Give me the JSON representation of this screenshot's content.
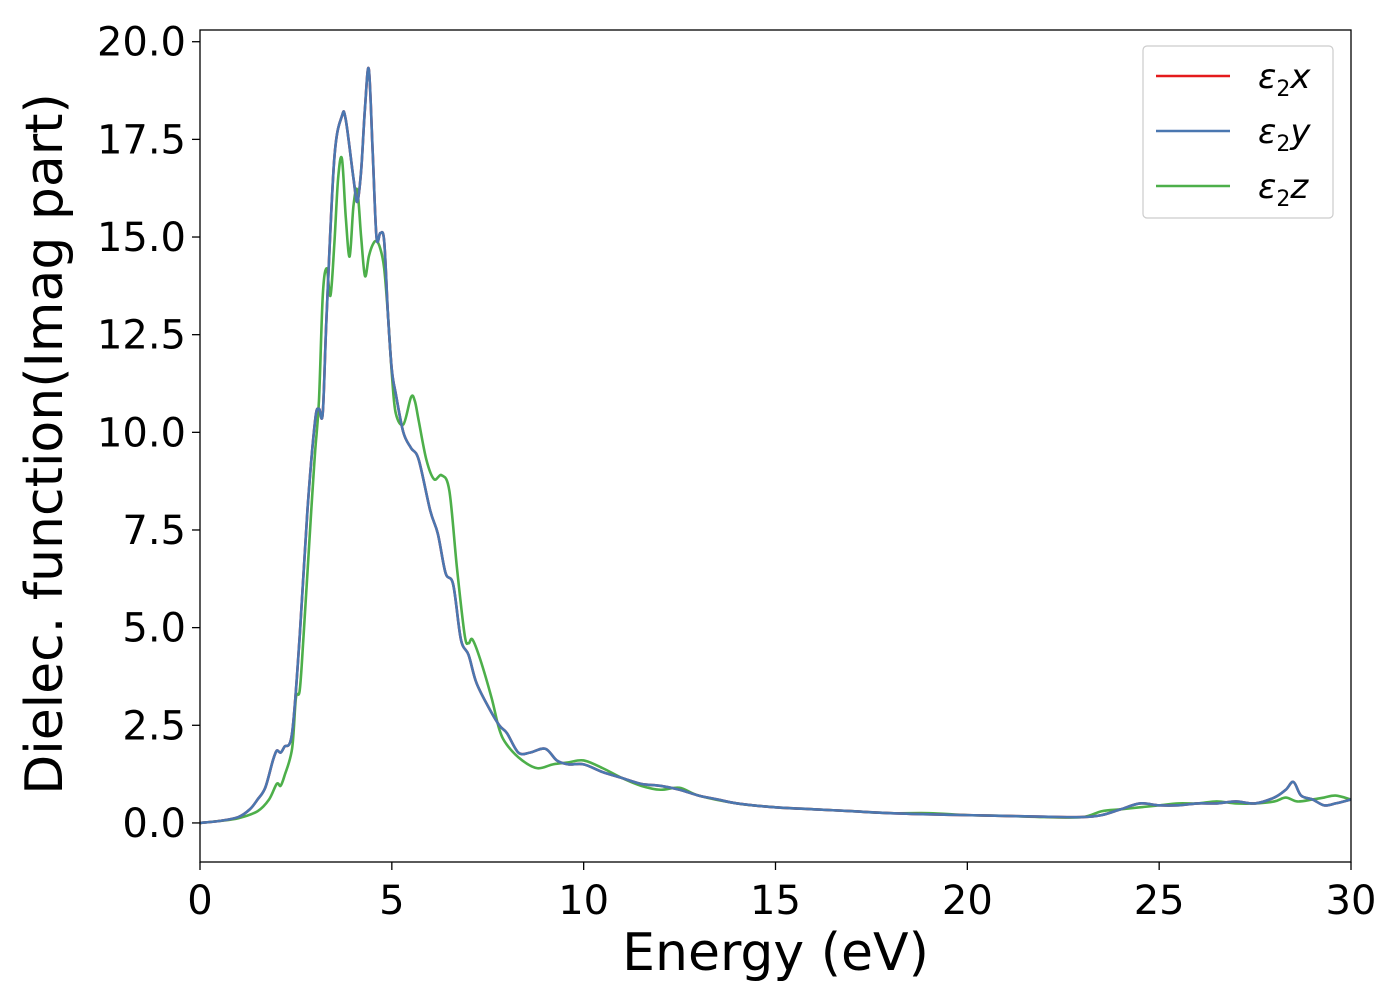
{
  "chart_data": {
    "type": "line",
    "title": "",
    "xlabel": "Energy (eV)",
    "ylabel": "Dielec. function(Imag part)",
    "xlim": [
      0,
      30
    ],
    "ylim": [
      -1.0,
      20.3
    ],
    "xticks": [
      0,
      5,
      10,
      15,
      20,
      25,
      30
    ],
    "xtick_labels": [
      "0",
      "5",
      "10",
      "15",
      "20",
      "25",
      "30"
    ],
    "yticks": [
      0.0,
      2.5,
      5.0,
      7.5,
      10.0,
      12.5,
      15.0,
      17.5,
      20.0
    ],
    "ytick_labels": [
      "0.0",
      "2.5",
      "5.0",
      "7.5",
      "10.0",
      "12.5",
      "15.0",
      "17.5",
      "20.0"
    ],
    "grid": false,
    "legend_position": "top-right",
    "series": [
      {
        "name": "ε₂x",
        "legend_base": "ε",
        "legend_sub": "2",
        "legend_suffix": "x",
        "color": "#e41a1c",
        "x": [
          0,
          0.5,
          1.0,
          1.3,
          1.5,
          1.7,
          1.9,
          2.0,
          2.1,
          2.2,
          2.4,
          2.6,
          2.8,
          3.0,
          3.1,
          3.2,
          3.3,
          3.5,
          3.7,
          3.8,
          4.0,
          4.1,
          4.2,
          4.3,
          4.4,
          4.5,
          4.6,
          4.7,
          4.8,
          4.9,
          5.0,
          5.1,
          5.3,
          5.5,
          5.7,
          6.0,
          6.2,
          6.4,
          6.6,
          6.8,
          7.0,
          7.2,
          7.5,
          7.8,
          8.0,
          8.3,
          8.6,
          9.0,
          9.3,
          9.6,
          10.0,
          10.5,
          11.0,
          11.5,
          12.0,
          12.5,
          13.0,
          13.5,
          14.0,
          15.0,
          16.0,
          17.0,
          18.0,
          19.0,
          20.0,
          21.0,
          22.0,
          23.0,
          23.5,
          24.0,
          24.5,
          25.0,
          25.5,
          26.0,
          26.5,
          27.0,
          27.5,
          28.0,
          28.3,
          28.5,
          28.7,
          29.0,
          29.3,
          29.6,
          30.0
        ],
        "values": [
          0,
          0.05,
          0.15,
          0.35,
          0.6,
          0.9,
          1.6,
          1.85,
          1.8,
          1.95,
          2.3,
          4.8,
          8.0,
          10.3,
          10.6,
          10.5,
          13.0,
          17.0,
          18.1,
          18.0,
          16.5,
          15.9,
          16.7,
          18.3,
          19.3,
          17.2,
          15.0,
          15.1,
          14.9,
          13.0,
          11.6,
          11.0,
          10.0,
          9.6,
          9.3,
          8.0,
          7.4,
          6.4,
          6.1,
          4.7,
          4.3,
          3.6,
          3.0,
          2.5,
          2.3,
          1.8,
          1.8,
          1.9,
          1.6,
          1.5,
          1.5,
          1.3,
          1.15,
          1.0,
          0.95,
          0.85,
          0.7,
          0.6,
          0.5,
          0.4,
          0.35,
          0.3,
          0.25,
          0.22,
          0.2,
          0.18,
          0.16,
          0.15,
          0.2,
          0.35,
          0.5,
          0.45,
          0.45,
          0.5,
          0.5,
          0.55,
          0.5,
          0.65,
          0.85,
          1.05,
          0.7,
          0.6,
          0.45,
          0.5,
          0.6
        ]
      },
      {
        "name": "ε₂y",
        "legend_base": "ε",
        "legend_sub": "2",
        "legend_suffix": "y",
        "color": "#4a77b0",
        "x": [
          0,
          0.5,
          1.0,
          1.3,
          1.5,
          1.7,
          1.9,
          2.0,
          2.1,
          2.2,
          2.4,
          2.6,
          2.8,
          3.0,
          3.1,
          3.2,
          3.3,
          3.5,
          3.7,
          3.8,
          4.0,
          4.1,
          4.2,
          4.3,
          4.4,
          4.5,
          4.6,
          4.7,
          4.8,
          4.9,
          5.0,
          5.1,
          5.3,
          5.5,
          5.7,
          6.0,
          6.2,
          6.4,
          6.6,
          6.8,
          7.0,
          7.2,
          7.5,
          7.8,
          8.0,
          8.3,
          8.6,
          9.0,
          9.3,
          9.6,
          10.0,
          10.5,
          11.0,
          11.5,
          12.0,
          12.5,
          13.0,
          13.5,
          14.0,
          15.0,
          16.0,
          17.0,
          18.0,
          19.0,
          20.0,
          21.0,
          22.0,
          23.0,
          23.5,
          24.0,
          24.5,
          25.0,
          25.5,
          26.0,
          26.5,
          27.0,
          27.5,
          28.0,
          28.3,
          28.5,
          28.7,
          29.0,
          29.3,
          29.6,
          30.0
        ],
        "values": [
          0,
          0.05,
          0.15,
          0.35,
          0.6,
          0.9,
          1.6,
          1.85,
          1.8,
          1.95,
          2.3,
          4.8,
          8.0,
          10.3,
          10.6,
          10.5,
          13.0,
          17.0,
          18.1,
          18.0,
          16.5,
          15.9,
          16.7,
          18.3,
          19.3,
          17.2,
          15.0,
          15.1,
          14.9,
          13.0,
          11.6,
          11.0,
          10.0,
          9.6,
          9.3,
          8.0,
          7.4,
          6.4,
          6.1,
          4.7,
          4.3,
          3.6,
          3.0,
          2.5,
          2.3,
          1.8,
          1.8,
          1.9,
          1.6,
          1.5,
          1.5,
          1.3,
          1.15,
          1.0,
          0.95,
          0.85,
          0.7,
          0.6,
          0.5,
          0.4,
          0.35,
          0.3,
          0.25,
          0.22,
          0.2,
          0.18,
          0.16,
          0.15,
          0.2,
          0.35,
          0.5,
          0.45,
          0.45,
          0.5,
          0.5,
          0.55,
          0.5,
          0.65,
          0.85,
          1.05,
          0.7,
          0.6,
          0.45,
          0.5,
          0.6
        ]
      },
      {
        "name": "ε₂z",
        "legend_base": "ε",
        "legend_sub": "2",
        "legend_suffix": "z",
        "color": "#4daf4a",
        "x": [
          0,
          0.5,
          1.0,
          1.5,
          1.8,
          2.0,
          2.1,
          2.2,
          2.4,
          2.5,
          2.6,
          2.7,
          2.9,
          3.0,
          3.1,
          3.2,
          3.3,
          3.4,
          3.5,
          3.6,
          3.7,
          3.8,
          3.9,
          4.0,
          4.1,
          4.2,
          4.3,
          4.4,
          4.5,
          4.6,
          4.7,
          4.8,
          4.9,
          5.0,
          5.1,
          5.3,
          5.5,
          5.6,
          5.7,
          5.9,
          6.1,
          6.3,
          6.5,
          6.7,
          6.9,
          7.0,
          7.1,
          7.3,
          7.6,
          7.8,
          8.0,
          8.4,
          8.8,
          9.2,
          9.6,
          10.0,
          10.5,
          11.0,
          11.5,
          12.0,
          12.5,
          13.0,
          14.0,
          15.0,
          16.0,
          17.0,
          18.0,
          19.0,
          20.0,
          21.0,
          22.0,
          23.0,
          23.5,
          24.0,
          24.5,
          25.0,
          25.5,
          26.0,
          26.5,
          27.0,
          27.5,
          28.0,
          28.3,
          28.6,
          29.0,
          29.3,
          29.6,
          30.0
        ],
        "values": [
          0,
          0.05,
          0.12,
          0.3,
          0.6,
          1.0,
          0.95,
          1.2,
          1.9,
          3.2,
          3.4,
          4.8,
          8.0,
          9.5,
          10.8,
          13.5,
          14.2,
          13.5,
          14.8,
          16.5,
          17.0,
          15.5,
          14.5,
          15.8,
          16.2,
          15.0,
          14.0,
          14.5,
          14.8,
          14.9,
          14.7,
          14.2,
          13.0,
          11.5,
          10.5,
          10.2,
          10.9,
          10.8,
          10.3,
          9.3,
          8.8,
          8.9,
          8.5,
          6.5,
          4.8,
          4.6,
          4.7,
          4.2,
          3.2,
          2.4,
          2.0,
          1.6,
          1.4,
          1.5,
          1.55,
          1.6,
          1.4,
          1.15,
          0.95,
          0.85,
          0.9,
          0.7,
          0.5,
          0.4,
          0.35,
          0.3,
          0.25,
          0.25,
          0.2,
          0.18,
          0.15,
          0.15,
          0.3,
          0.35,
          0.4,
          0.45,
          0.5,
          0.5,
          0.55,
          0.5,
          0.5,
          0.55,
          0.65,
          0.55,
          0.6,
          0.65,
          0.7,
          0.6
        ]
      }
    ]
  }
}
